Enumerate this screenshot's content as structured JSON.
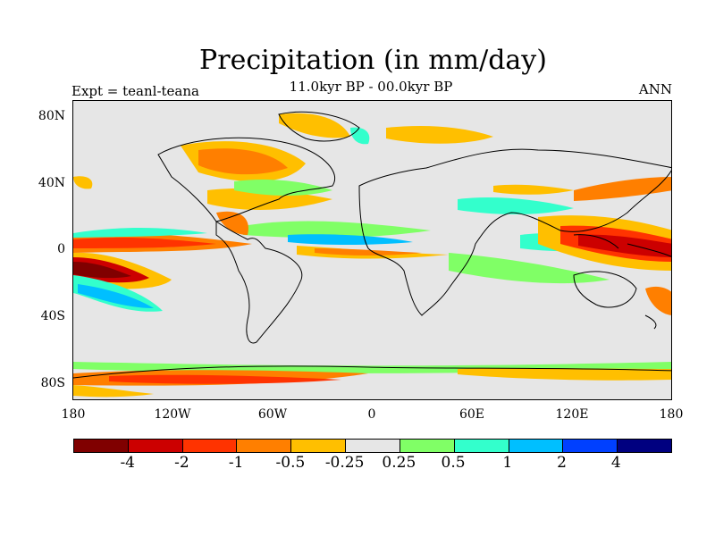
{
  "title": "Precipitation (in mm/day)",
  "subtitle": "11.0kyr BP - 00.0kyr BP",
  "left_label": "Expt = teanl-teana",
  "right_label": "ANN",
  "y_ticks": [
    "80N",
    "40N",
    "0",
    "40S",
    "80S"
  ],
  "x_ticks": [
    "180",
    "120W",
    "60W",
    "0",
    "60E",
    "120E",
    "180"
  ],
  "colorbar": {
    "colors": [
      "#800000",
      "#cc0000",
      "#ff3300",
      "#ff7f00",
      "#ffbf00",
      "#e6e6e6",
      "#80ff66",
      "#33ffcc",
      "#00bfff",
      "#0040ff",
      "#000080"
    ],
    "labels": [
      "-4",
      "-2",
      "-1",
      "-0.5",
      "-0.25",
      "0.25",
      "0.5",
      "1",
      "2",
      "4"
    ]
  }
}
